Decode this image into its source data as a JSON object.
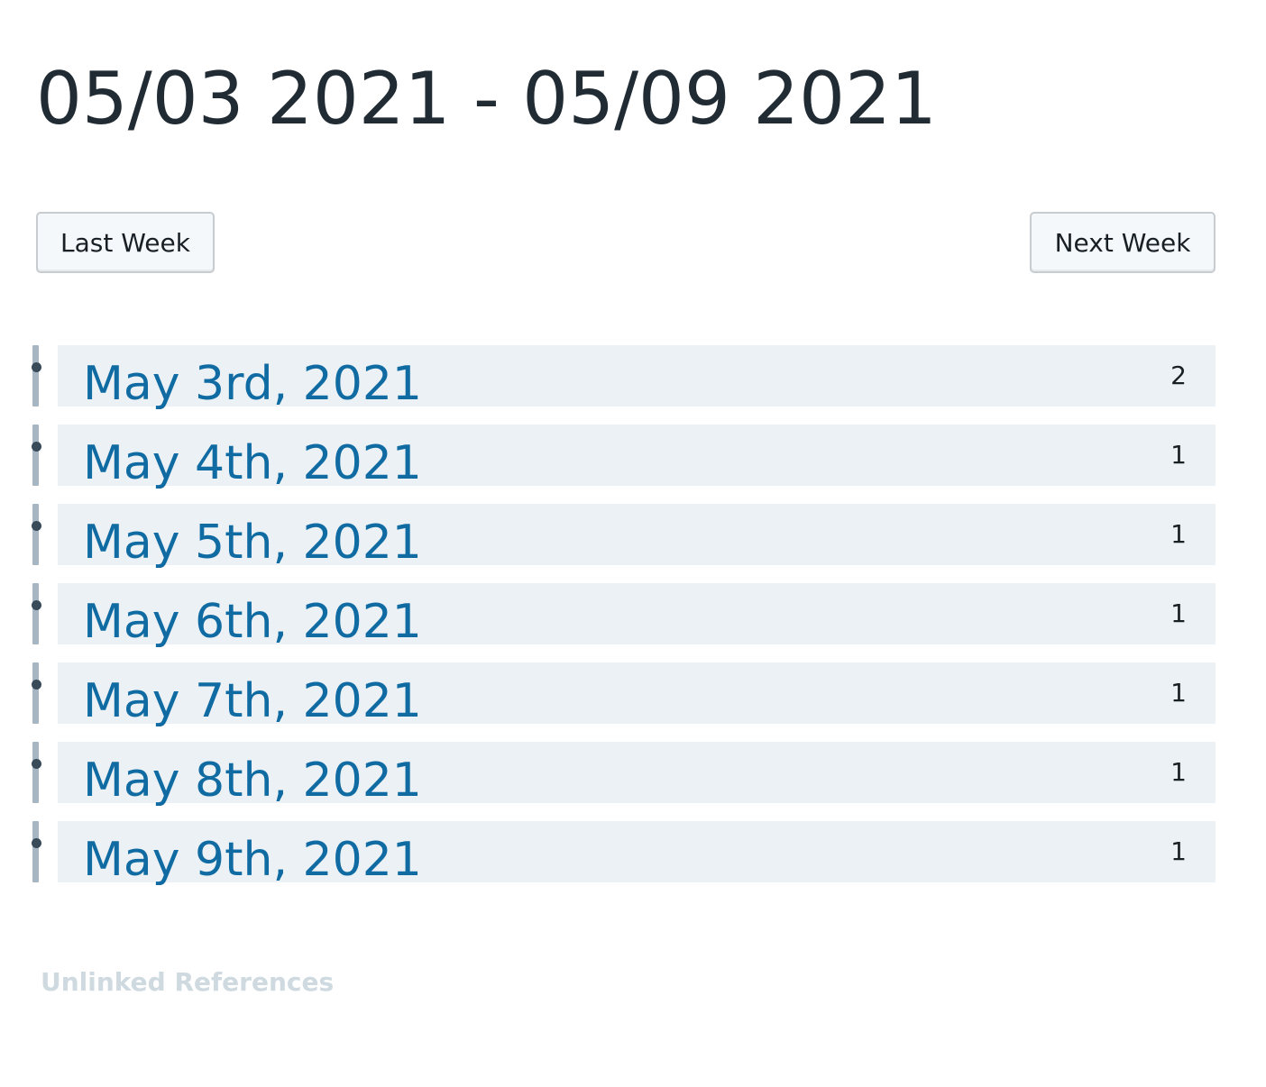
{
  "header": {
    "title": "05/03 2021 - 05/09 2021"
  },
  "nav": {
    "last_week_label": "Last Week",
    "next_week_label": "Next Week"
  },
  "references": [
    {
      "title": "May 3rd, 2021",
      "count": "2"
    },
    {
      "title": "May 4th, 2021",
      "count": "1"
    },
    {
      "title": "May 5th, 2021",
      "count": "1"
    },
    {
      "title": "May 6th, 2021",
      "count": "1"
    },
    {
      "title": "May 7th, 2021",
      "count": "1"
    },
    {
      "title": "May 8th, 2021",
      "count": "1"
    },
    {
      "title": "May 9th, 2021",
      "count": "1"
    }
  ],
  "footer": {
    "unlinked_label": "Unlinked References"
  },
  "colors": {
    "title_text": "#202b33",
    "link_blue": "#106ba3",
    "row_background": "#ebf1f5",
    "left_bar": "#a7b6c2",
    "bullet": "#394b59",
    "unlinked_text": "#ced9e0"
  }
}
